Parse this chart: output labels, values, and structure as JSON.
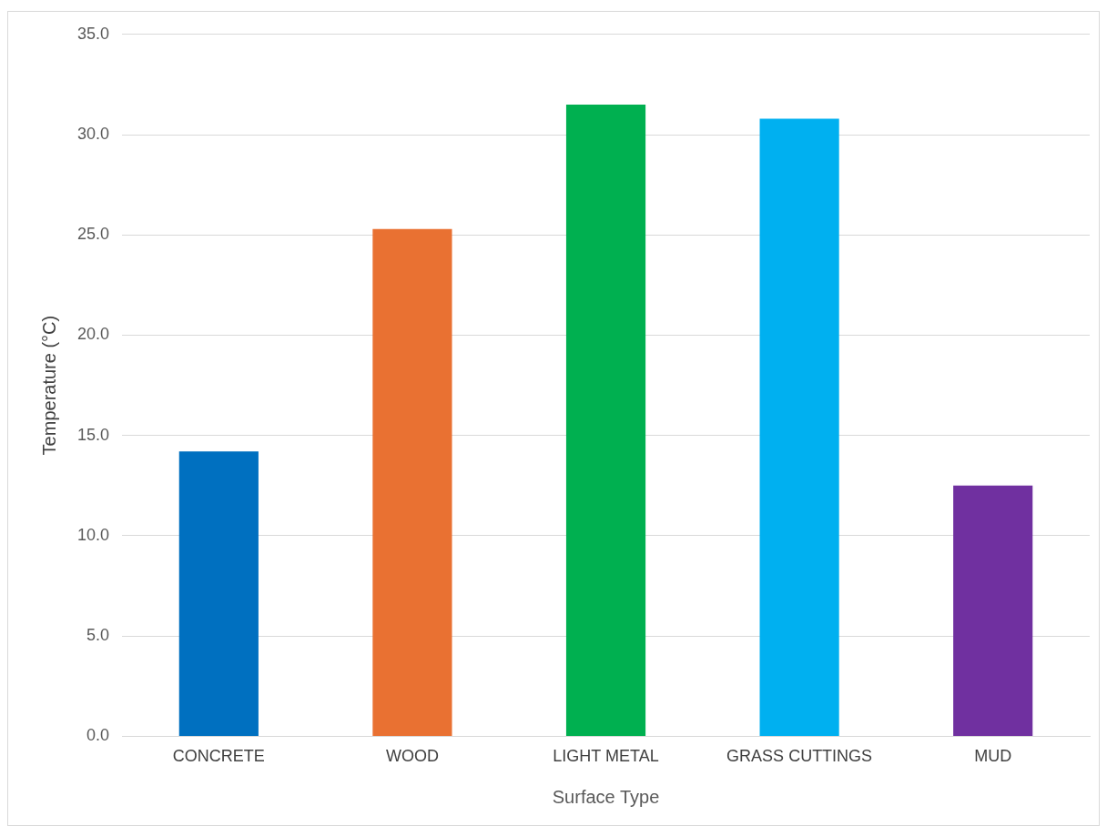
{
  "chart_data": {
    "type": "bar",
    "xlabel": "Surface Type",
    "ylabel": "Temperature (°C)",
    "categories": [
      "CONCRETE",
      "WOOD",
      "LIGHT METAL",
      "GRASS CUTTINGS",
      "MUD"
    ],
    "values": [
      14.2,
      25.3,
      31.5,
      30.8,
      12.5
    ],
    "colors": [
      "#0070c0",
      "#e97132",
      "#00b050",
      "#00b0f0",
      "#7030a0"
    ],
    "ylim": [
      0,
      35
    ],
    "yticks": [
      {
        "value": 0,
        "label": "0.0"
      },
      {
        "value": 5,
        "label": "5.0"
      },
      {
        "value": 10,
        "label": "10.0"
      },
      {
        "value": 15,
        "label": "15.0"
      },
      {
        "value": 20,
        "label": "20.0"
      },
      {
        "value": 25,
        "label": "25.0"
      },
      {
        "value": 30,
        "label": "30.0"
      },
      {
        "value": 35,
        "label": "35.0"
      }
    ],
    "grid": "y",
    "legend": false
  }
}
